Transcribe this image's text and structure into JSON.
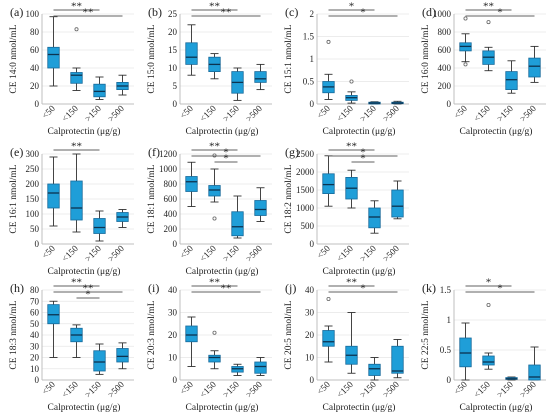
{
  "chart_data": [
    {
      "type": "box",
      "panel": "(a)",
      "ylabel": "CE 14:0 nmol/mL",
      "xlabel": "Calprotectin (μg/g)",
      "categories": [
        "<50",
        "<150",
        ">150",
        ">500"
      ],
      "ylim": [
        0,
        100
      ],
      "yticks": [
        0,
        20,
        40,
        60,
        80,
        100
      ],
      "boxes": [
        {
          "min": 20,
          "q1": 40,
          "median": 55,
          "q3": 63,
          "max": 97
        },
        {
          "min": 15,
          "q1": 23,
          "median": 32,
          "q3": 35,
          "max": 40
        },
        {
          "min": 5,
          "q1": 8,
          "median": 14,
          "q3": 22,
          "max": 30
        },
        {
          "min": 10,
          "q1": 16,
          "median": 20,
          "q3": 24,
          "max": 32
        }
      ],
      "outliers": [
        [
          1,
          83
        ]
      ],
      "sig": [
        {
          "from": 0,
          "to": 2,
          "label": "**"
        },
        {
          "from": 0,
          "to": 3,
          "label": "**"
        }
      ]
    },
    {
      "type": "box",
      "panel": "(b)",
      "ylabel": "CE 15:0 nmol/mL",
      "xlabel": "Calprotectin (μg/g)",
      "categories": [
        "<50",
        "<150",
        ">150",
        ">500"
      ],
      "ylim": [
        0,
        25
      ],
      "yticks": [
        0,
        5,
        10,
        15,
        20,
        25
      ],
      "boxes": [
        {
          "min": 8,
          "q1": 11,
          "median": 13,
          "q3": 17,
          "max": 22
        },
        {
          "min": 7,
          "q1": 9,
          "median": 11,
          "q3": 13,
          "max": 14
        },
        {
          "min": 1,
          "q1": 3,
          "median": 6,
          "q3": 9,
          "max": 10
        },
        {
          "min": 4,
          "q1": 6,
          "median": 7,
          "q3": 9,
          "max": 11
        }
      ],
      "outliers": [],
      "sig": [
        {
          "from": 0,
          "to": 2,
          "label": "**"
        },
        {
          "from": 0,
          "to": 3,
          "label": "**"
        }
      ]
    },
    {
      "type": "box",
      "panel": "(c)",
      "ylabel": "CE 15:1 nmol/mL",
      "xlabel": "Calprotectin (μg/g)",
      "categories": [
        "<50",
        "<150",
        ">150",
        ">500"
      ],
      "ylim": [
        0,
        2
      ],
      "yticks": [
        0,
        0.5,
        1,
        1.5,
        2
      ],
      "boxes": [
        {
          "min": 0.1,
          "q1": 0.25,
          "median": 0.38,
          "q3": 0.5,
          "max": 0.66
        },
        {
          "min": 0.02,
          "q1": 0.08,
          "median": 0.14,
          "q3": 0.19,
          "max": 0.27
        },
        {
          "min": 0.0,
          "q1": 0.0,
          "median": 0.02,
          "q3": 0.04,
          "max": 0.05
        },
        {
          "min": 0.0,
          "q1": 0.01,
          "median": 0.02,
          "q3": 0.04,
          "max": 0.06
        }
      ],
      "outliers": [
        [
          0,
          1.38
        ],
        [
          1,
          0.5
        ]
      ],
      "sig": [
        {
          "from": 0,
          "to": 2,
          "label": "*"
        },
        {
          "from": 0,
          "to": 3,
          "label": "*"
        }
      ]
    },
    {
      "type": "box",
      "panel": "(d)",
      "ylabel": "CE 16:0 nmol/mL",
      "xlabel": "Calprotectin (μg/g)",
      "categories": [
        "<50",
        "<150",
        ">150",
        ">500"
      ],
      "ylim": [
        0,
        1000
      ],
      "yticks": [
        0,
        200,
        400,
        600,
        800,
        1000
      ],
      "boxes": [
        {
          "min": 470,
          "q1": 590,
          "median": 640,
          "q3": 680,
          "max": 780
        },
        {
          "min": 370,
          "q1": 440,
          "median": 520,
          "q3": 590,
          "max": 630
        },
        {
          "min": 120,
          "q1": 160,
          "median": 270,
          "q3": 360,
          "max": 480
        },
        {
          "min": 240,
          "q1": 300,
          "median": 420,
          "q3": 510,
          "max": 640
        }
      ],
      "outliers": [
        [
          0,
          440
        ],
        [
          0,
          950
        ],
        [
          1,
          910
        ]
      ],
      "sig": [
        {
          "from": 0,
          "to": 2,
          "label": "**"
        },
        {
          "from": 0,
          "to": 3,
          "label": "*"
        }
      ]
    },
    {
      "type": "box",
      "panel": "(e)",
      "ylabel": "CE 16:1 nmol/mL",
      "xlabel": "Calprotectin (μg/g)",
      "categories": [
        "<50",
        "<150",
        ">150",
        ">500"
      ],
      "ylim": [
        0,
        300
      ],
      "yticks": [
        0,
        50,
        100,
        150,
        200,
        250,
        300
      ],
      "boxes": [
        {
          "min": 60,
          "q1": 120,
          "median": 170,
          "q3": 200,
          "max": 290
        },
        {
          "min": 40,
          "q1": 80,
          "median": 120,
          "q3": 210,
          "max": 300
        },
        {
          "min": 10,
          "q1": 35,
          "median": 55,
          "q3": 85,
          "max": 110
        },
        {
          "min": 55,
          "q1": 75,
          "median": 90,
          "q3": 105,
          "max": 115
        }
      ],
      "outliers": [],
      "sig": [
        {
          "from": 0,
          "to": 2,
          "label": "**"
        }
      ]
    },
    {
      "type": "box",
      "panel": "(f)",
      "ylabel": "CE 18:1 nmol/mL",
      "xlabel": "Calprotectin (μg/g)",
      "categories": [
        "<50",
        "<150",
        ">150",
        ">500"
      ],
      "ylim": [
        0,
        1200
      ],
      "yticks": [
        0,
        200,
        400,
        600,
        800,
        1000,
        1200
      ],
      "boxes": [
        {
          "min": 500,
          "q1": 700,
          "median": 830,
          "q3": 900,
          "max": 1090
        },
        {
          "min": 560,
          "q1": 640,
          "median": 720,
          "q3": 780,
          "max": 1000
        },
        {
          "min": 80,
          "q1": 110,
          "median": 230,
          "q3": 430,
          "max": 640
        },
        {
          "min": 300,
          "q1": 380,
          "median": 460,
          "q3": 580,
          "max": 750
        }
      ],
      "outliers": [
        [
          1,
          1180
        ],
        [
          1,
          340
        ]
      ],
      "sig": [
        {
          "from": 0,
          "to": 2,
          "label": "**"
        },
        {
          "from": 0,
          "to": 3,
          "label": "*"
        },
        {
          "from": 1,
          "to": 2,
          "label": "*"
        }
      ]
    },
    {
      "type": "box",
      "panel": "(g)",
      "ylabel": "CE 18:2 nmol/mL",
      "xlabel": "Calprotectin (μg/g)",
      "categories": [
        "<50",
        "<150",
        ">150",
        ">500"
      ],
      "ylim": [
        0,
        2500
      ],
      "yticks": [
        0,
        500,
        1000,
        1500,
        2000,
        2500
      ],
      "boxes": [
        {
          "min": 1050,
          "q1": 1400,
          "median": 1650,
          "q3": 1950,
          "max": 2450
        },
        {
          "min": 1000,
          "q1": 1250,
          "median": 1550,
          "q3": 1850,
          "max": 2050
        },
        {
          "min": 300,
          "q1": 450,
          "median": 750,
          "q3": 1000,
          "max": 1200
        },
        {
          "min": 700,
          "q1": 750,
          "median": 1050,
          "q3": 1500,
          "max": 1750
        }
      ],
      "outliers": [],
      "sig": [
        {
          "from": 0,
          "to": 2,
          "label": "**"
        },
        {
          "from": 0,
          "to": 3,
          "label": "*"
        },
        {
          "from": 1,
          "to": 2,
          "label": "*"
        }
      ]
    },
    {
      "type": "box",
      "panel": "(h)",
      "ylabel": "CE 18:3 nmol/mL",
      "xlabel": "Calprotectin (μg/g)",
      "categories": [
        "<50",
        "<150",
        ">150",
        ">500"
      ],
      "ylim": [
        0,
        80
      ],
      "yticks": [
        0,
        10,
        20,
        30,
        40,
        50,
        60,
        70,
        80
      ],
      "boxes": [
        {
          "min": 20,
          "q1": 50,
          "median": 58,
          "q3": 67,
          "max": 70
        },
        {
          "min": 20,
          "q1": 34,
          "median": 40,
          "q3": 46,
          "max": 49
        },
        {
          "min": 5,
          "q1": 8,
          "median": 16,
          "q3": 26,
          "max": 32
        },
        {
          "min": 10,
          "q1": 16,
          "median": 21,
          "q3": 28,
          "max": 33
        }
      ],
      "outliers": [],
      "sig": [
        {
          "from": 0,
          "to": 2,
          "label": "**"
        },
        {
          "from": 0,
          "to": 3,
          "label": "**"
        },
        {
          "from": 1,
          "to": 2,
          "label": "*"
        }
      ]
    },
    {
      "type": "box",
      "panel": "(i)",
      "ylabel": "CE 20:3 nmol/mL",
      "xlabel": "Calprotectin (μg/g)",
      "categories": [
        "<50",
        "<150",
        ">150",
        ">500"
      ],
      "ylim": [
        0,
        40
      ],
      "yticks": [
        0,
        10,
        20,
        30,
        40
      ],
      "boxes": [
        {
          "min": 6,
          "q1": 17,
          "median": 20,
          "q3": 24,
          "max": 28
        },
        {
          "min": 5,
          "q1": 8,
          "median": 10,
          "q3": 11,
          "max": 13
        },
        {
          "min": 2,
          "q1": 3.5,
          "median": 5,
          "q3": 6,
          "max": 7
        },
        {
          "min": 2,
          "q1": 3,
          "median": 6,
          "q3": 8,
          "max": 10
        }
      ],
      "outliers": [
        [
          1,
          21
        ]
      ],
      "sig": [
        {
          "from": 0,
          "to": 2,
          "label": "**"
        },
        {
          "from": 0,
          "to": 3,
          "label": "**"
        }
      ]
    },
    {
      "type": "box",
      "panel": "(j)",
      "ylabel": "CE 20:5 nmol/mL",
      "xlabel": "Calprotectin (μg/g)",
      "categories": [
        "<50",
        "<150",
        ">150",
        ">500"
      ],
      "ylim": [
        0,
        40
      ],
      "yticks": [
        0,
        10,
        20,
        30,
        40
      ],
      "boxes": [
        {
          "min": 8,
          "q1": 15,
          "median": 17,
          "q3": 22,
          "max": 24
        },
        {
          "min": 3,
          "q1": 7,
          "median": 11,
          "q3": 15,
          "max": 30
        },
        {
          "min": 0,
          "q1": 2,
          "median": 5,
          "q3": 7,
          "max": 10
        },
        {
          "min": 1,
          "q1": 3,
          "median": 4,
          "q3": 15,
          "max": 18
        }
      ],
      "outliers": [
        [
          0,
          36
        ]
      ],
      "sig": [
        {
          "from": 0,
          "to": 2,
          "label": "**"
        },
        {
          "from": 0,
          "to": 3,
          "label": "*"
        }
      ]
    },
    {
      "type": "box",
      "panel": "(k)",
      "ylabel": "CE 22:5 nmol/mL",
      "xlabel": "Calprotectin (μg/g)",
      "categories": [
        "<50",
        "<150",
        ">150",
        ">500"
      ],
      "ylim": [
        0,
        1.5
      ],
      "yticks": [
        0,
        0.5,
        1,
        1.5
      ],
      "boxes": [
        {
          "min": 0.0,
          "q1": 0.22,
          "median": 0.45,
          "q3": 0.7,
          "max": 0.95
        },
        {
          "min": 0.18,
          "q1": 0.25,
          "median": 0.3,
          "q3": 0.4,
          "max": 0.45
        },
        {
          "min": 0.0,
          "q1": 0.01,
          "median": 0.02,
          "q3": 0.04,
          "max": 0.05
        },
        {
          "min": 0.0,
          "q1": 0.0,
          "median": 0.05,
          "q3": 0.25,
          "max": 0.55
        }
      ],
      "outliers": [
        [
          1,
          1.25
        ]
      ],
      "sig": [
        {
          "from": 0,
          "to": 2,
          "label": "*"
        },
        {
          "from": 0,
          "to": 3,
          "label": "*"
        }
      ]
    }
  ]
}
